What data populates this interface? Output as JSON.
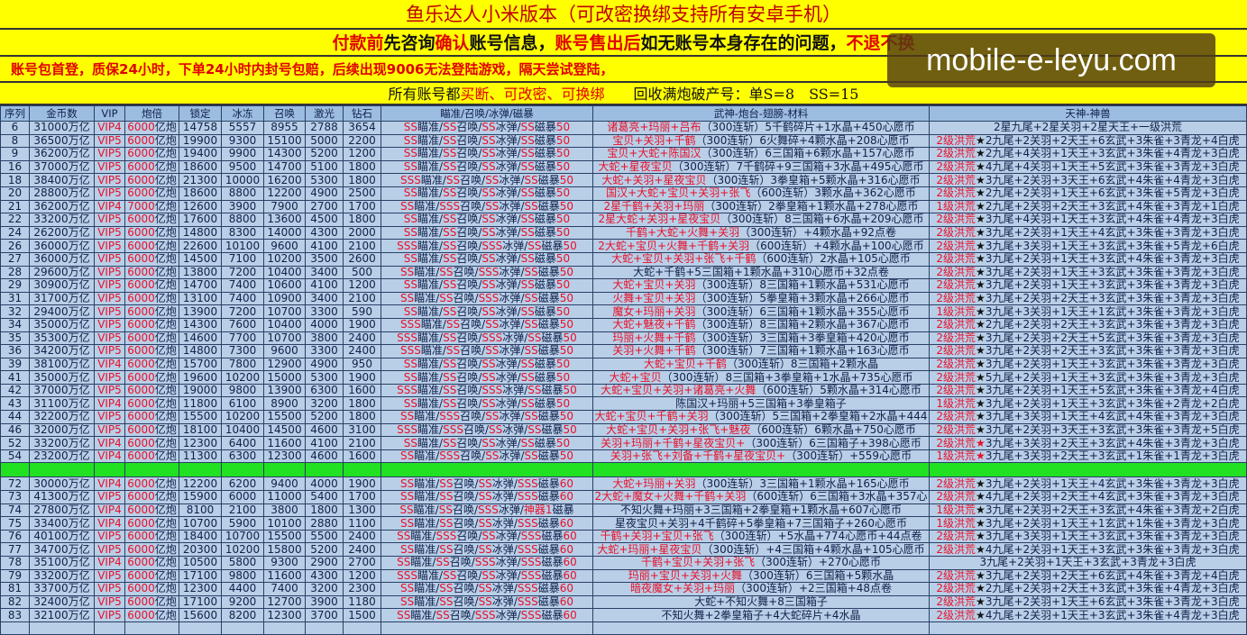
{
  "header": {
    "title": "鱼乐达人小米版本（可改密换绑支持所有安卓手机）",
    "line2": [
      {
        "t": "付款前",
        "c": "red"
      },
      {
        "t": "先咨询",
        "c": "blk"
      },
      {
        "t": "确认",
        "c": "red"
      },
      {
        "t": "账号信息，",
        "c": "blk"
      },
      {
        "t": "账号售出后",
        "c": "red"
      },
      {
        "t": "如无账号本身存在的问题，",
        "c": "blk"
      },
      {
        "t": "不退不换",
        "c": "red"
      }
    ],
    "line3": "账号包首登，质保24小时，下单24小时内封号包赔，后续出现9006无法登陆游戏，隔天尝试登陆，",
    "line4": [
      {
        "t": "所有账号都",
        "c": "blk"
      },
      {
        "t": "买断、可改密、可换绑",
        "c": "red"
      },
      {
        "t": "　　回收满炮破产号：单S=8　SS=15",
        "c": "blk"
      }
    ]
  },
  "watermark": "mobile-e-leyu.com",
  "columns": [
    "序列",
    "金币数",
    "VIP",
    "炮倍",
    "锁定",
    "冰冻",
    "召唤",
    "激光",
    "钻石",
    "瞄准/召唤/冰弹/磁暴",
    "武神-炮台-翅膀-材料",
    "天神-神兽"
  ],
  "skill_names": [
    "瞄准",
    "召唤",
    "冰弹",
    "磁暴"
  ],
  "rows_a": [
    [
      "6",
      "31000万亿",
      "VIP4",
      "6000亿炮",
      "14758",
      "5557",
      "8955",
      "2788",
      "3654",
      [
        "SS",
        "SS",
        "SS",
        "SS"
      ],
      "50",
      "诸葛亮+玛丽+吕布（300连斩）5千鹤碎片+1水晶+450心愿币",
      "2星九尾+2星关羽+2星天王+一级洪荒"
    ],
    [
      "8",
      "36500万亿",
      "VIP5",
      "6000亿炮",
      "19900",
      "9300",
      "15100",
      "5000",
      "2200",
      [
        "SS",
        "SS",
        "SS",
        "SS"
      ],
      "50",
      "宝贝+关羽+千鹤（300连斩）6火舞碎+4颗水晶+208心愿币",
      "2级洪荒★2九尾+2关羽+2天王+6玄武+3朱雀+3青龙+4白虎"
    ],
    [
      "9",
      "36200万亿",
      "VIP5",
      "6000亿炮",
      "19400",
      "9900",
      "14300",
      "5200",
      "1200",
      [
        "SS",
        "SS",
        "SS",
        "SS"
      ],
      "50",
      "宝贝+大蛇+陈国汉（300连斩）6三国箱+6颗水晶+157心愿币",
      "2级洪荒★2九尾+4关羽+1天王+3玄武+3朱雀+4青龙+3白虎"
    ],
    [
      "16",
      "37000万亿",
      "VIP5",
      "6000亿炮",
      "18600",
      "9500",
      "14700",
      "5100",
      "1800",
      [
        "SS",
        "SS",
        "SS",
        "SS"
      ],
      "50",
      "大蛇+星夜宝贝（300连斩）7千鹤碎+9三国箱+3水晶+495心愿币",
      "2级洪荒★4九尾+4关羽+1天王+5玄武+3朱雀+3青龙+3白虎"
    ],
    [
      "18",
      "38400万亿",
      "VIP5",
      "6000亿炮",
      "21300",
      "10000",
      "16200",
      "5300",
      "1800",
      [
        "SSS",
        "SS",
        "SS",
        "SS"
      ],
      "50",
      "大蛇+关羽+星夜宝贝（300连斩）3拳皇箱+5颗水晶+316心愿币",
      "2级洪荒★3九尾+2关羽+3天王+6玄武+4朱雀+4青龙+3白虎"
    ],
    [
      "20",
      "28800万亿",
      "VIP5",
      "6000亿炮",
      "18600",
      "8800",
      "12200",
      "4900",
      "2500",
      [
        "SS",
        "SS",
        "SS",
        "SS"
      ],
      "50",
      "国汉+大蛇+宝贝+关羽+张飞（600连斩）3颗水晶+362心愿币",
      "2级洪荒★2九尾+2关羽+1天王+6玄武+3朱雀+5青龙+3白虎"
    ],
    [
      "21",
      "36200万亿",
      "VIP4",
      "7000亿炮",
      "12600",
      "3900",
      "7900",
      "2700",
      "1700",
      [
        "SS",
        "SSS",
        "SS",
        "SS"
      ],
      "50",
      "2星千鹤+关羽+玛丽（300连斩）2拳皇箱+1颗水晶+278心愿币",
      "1级洪荒★2九尾+2关羽+2天王+3玄武+4朱雀+3青龙+1白虎"
    ],
    [
      "22",
      "33200万亿",
      "VIP5",
      "6000亿炮",
      "17600",
      "8800",
      "13600",
      "4500",
      "1800",
      [
        "SS",
        "SS",
        "SS",
        "SS"
      ],
      "50",
      "2星大蛇+关羽+星夜宝贝（300连斩）8三国箱+6水晶+209心愿币",
      "2级洪荒★3九尾+4关羽+1天王+3玄武+4朱雀+4青龙+3白虎"
    ],
    [
      "24",
      "26200万亿",
      "VIP5",
      "6000亿炮",
      "14800",
      "8300",
      "14000",
      "4300",
      "2000",
      [
        "SS",
        "SS",
        "SS",
        "SS"
      ],
      "50",
      "千鹤+大蛇+火舞+关羽（300连斩）+4颗水晶+92点卷",
      "2级洪荒★3九尾+2关羽+1天王+4玄武+3朱雀+3青龙+3白虎"
    ],
    [
      "26",
      "36000万亿",
      "VIP5",
      "6000亿炮",
      "22600",
      "10100",
      "9600",
      "4100",
      "2100",
      [
        "SSS",
        "SS",
        "SSS",
        "SS"
      ],
      "50",
      "2大蛇+宝贝+火舞+千鹤+关羽（600连斩）+4颗水晶+100心愿币",
      "2级洪荒★3九尾+3关羽+1天王+3玄武+3朱雀+5青龙+6白虎"
    ],
    [
      "27",
      "36000万亿",
      "VIP5",
      "6000亿炮",
      "14500",
      "7100",
      "10200",
      "3500",
      "2600",
      [
        "SS",
        "SS",
        "SS",
        "SS"
      ],
      "50",
      "大蛇+宝贝+关羽+张飞+千鹤（600连斩）2水晶+105心愿币",
      "2级洪荒★3九尾+2关羽+1天王+3玄武+4朱雀+3青龙+3白虎"
    ],
    [
      "28",
      "29600万亿",
      "VIP5",
      "6000亿炮",
      "13800",
      "7200",
      "10400",
      "3400",
      "500",
      [
        "SS",
        "SS",
        "SSS",
        "SS"
      ],
      "50",
      "大蛇+千鹤+5三国箱+1颗水晶+310心愿币+32点卷",
      "2级洪荒★3九尾+2关羽+1天王+3玄武+3朱雀+3青龙+3白虎"
    ],
    [
      "29",
      "30900万亿",
      "VIP5",
      "6000亿炮",
      "14700",
      "7400",
      "10600",
      "4100",
      "1200",
      [
        "SS",
        "SS",
        "SS",
        "SS"
      ],
      "50",
      "大蛇+宝贝+关羽（300连斩）8三国箱+1颗水晶+531心愿币",
      "2级洪荒★3九尾+2关羽+1天王+3玄武+3朱雀+3青龙+3白虎"
    ],
    [
      "31",
      "31700万亿",
      "VIP5",
      "6000亿炮",
      "13100",
      "7400",
      "10900",
      "3400",
      "2100",
      [
        "SS",
        "SS",
        "SSS",
        "SS"
      ],
      "50",
      "火舞+宝贝+关羽（300连斩）5拳皇箱+3颗水晶+266心愿币",
      "2级洪荒★3九尾+2关羽+2天王+3玄武+3朱雀+3青龙+3白虎"
    ],
    [
      "32",
      "29400万亿",
      "VIP5",
      "6000亿炮",
      "13900",
      "7200",
      "10700",
      "3300",
      "590",
      [
        "SS",
        "SS",
        "SS",
        "SS"
      ],
      "50",
      "魔女+玛丽+关羽（300连斩）6三国箱+1颗水晶+355心愿币",
      "1级洪荒★3九尾+3关羽+1天王+1玄武+3朱雀+3青龙+3白虎"
    ],
    [
      "34",
      "35000万亿",
      "VIP5",
      "6000亿炮",
      "14300",
      "7600",
      "10400",
      "4000",
      "1900",
      [
        "SSS",
        "SS",
        "SS",
        "SS"
      ],
      "50",
      "大蛇+魅夜+千鹤（300连斩）8三国箱+2颗水晶+367心愿币",
      "2级洪荒★2九尾+2关羽+2天王+3玄武+3朱雀+3青龙+3白虎"
    ],
    [
      "35",
      "35300万亿",
      "VIP5",
      "6000亿炮",
      "14600",
      "7700",
      "10700",
      "3800",
      "2400",
      [
        "SSS",
        "SS",
        "SSS",
        "SS"
      ],
      "50",
      "玛丽+火舞+千鹤（300连斩）3三国箱+3拳皇箱+420心愿币",
      "2级洪荒★3九尾+2关羽+2天王+5玄武+3朱雀+3青龙+3白虎"
    ],
    [
      "36",
      "34200万亿",
      "VIP5",
      "6000亿炮",
      "14800",
      "7300",
      "9600",
      "3300",
      "2400",
      [
        "SSS",
        "SS",
        "SS",
        "SS"
      ],
      "50",
      "关羽+火舞+千鹤（300连斩）7三国箱+1颗水晶+163心愿币",
      "2级洪荒★3九尾+2关羽+2天王+3玄武+3朱雀+3青龙+3白虎"
    ],
    [
      "39",
      "38100万亿",
      "VIP4",
      "6000亿炮",
      "15700",
      "7800",
      "12900",
      "4900",
      "950",
      [
        "SS",
        "SS",
        "SS",
        "SS"
      ],
      "50",
      "大蛇+宝贝+千鹤（300连斩）8三国箱+2颗水晶",
      "2级洪荒★3九尾+2关羽+1天王+3玄武+3朱雀+3青龙+3白虎"
    ],
    [
      "41",
      "35000万亿",
      "VIP5",
      "6000亿炮",
      "19600",
      "10200",
      "15000",
      "5300",
      "1900",
      [
        "SS",
        "SS",
        "SS",
        "SS"
      ],
      "50",
      "大蛇+宝贝（300连斩）8三国箱+3拳皇箱+1水晶+735心愿币",
      "2级洪荒★5九尾+2关羽+1天王+3玄武+3朱雀+3青龙+3白虎"
    ],
    [
      "42",
      "37000万亿",
      "VIP5",
      "6000亿炮",
      "19000",
      "9800",
      "13900",
      "6300",
      "1600",
      [
        "SSS",
        "SS",
        "SSS",
        "SS"
      ],
      "50",
      "大蛇+宝贝+关羽+诸葛亮+火舞（600连斩）5颗水晶+314心愿币",
      "2级洪荒★3九尾+2关羽+1天王+5玄武+3朱雀+3青龙+4白虎"
    ],
    [
      "43",
      "31100万亿",
      "VIP4",
      "6000亿炮",
      "11800",
      "6100",
      "8900",
      "3200",
      "1800",
      [
        "SS",
        "SS",
        "SS",
        "SS"
      ],
      "50",
      "陈国汉+玛丽+5三国箱+3拳皇箱子",
      "1级洪荒★3九尾+2关羽+1天王+3玄武+3朱雀+2青龙+2白虎"
    ],
    [
      "44",
      "32200万亿",
      "VIP5",
      "6000亿炮",
      "15500",
      "10200",
      "15500",
      "5200",
      "1800",
      [
        "SS",
        "SSS",
        "SS",
        "SS"
      ],
      "50",
      "大蛇+宝贝+千鹤+关羽（300连斩）5三国箱+2拳皇箱+2水晶+444",
      "2级洪荒★3九尾+3关羽+1天王+4玄武+4朱雀+3青龙+3白虎"
    ],
    [
      "46",
      "32000万亿",
      "VIP5",
      "6000亿炮",
      "18100",
      "10400",
      "14500",
      "4600",
      "3100",
      [
        "SSS",
        "SSS",
        "SS",
        "SS"
      ],
      "50",
      "大蛇+宝贝+关羽+张飞+魅夜（600连斩）6颗水晶+750心愿币",
      "2级洪荒★3九尾+2关羽+3天王+3玄武+3朱雀+3青龙+5白虎"
    ],
    [
      "52",
      "33200万亿",
      "VIP4",
      "6000亿炮",
      "12300",
      "6400",
      "11600",
      "4100",
      "2100",
      [
        "SS",
        "SS",
        "SS",
        "SS"
      ],
      "50",
      "关羽+玛丽+千鹤+星夜宝贝+（300连斩）6三国箱子+398心愿币",
      "2级洪荒★3九尾+3关羽+2天王+3玄武+4朱雀+3青龙+3白虎"
    ],
    [
      "54",
      "23200万亿",
      "VIP4",
      "6000亿炮",
      "11300",
      "6300",
      "12300",
      "4600",
      "1600",
      [
        "SS",
        "SSS",
        "SS",
        "SS"
      ],
      "50",
      "关羽+张飞+刘备+千鹤+星夜宝贝+（300连斩）+559心愿币",
      "1级洪荒★3九尾+3关羽+2天王+3玄武+1朱雀+1青龙+3白虎"
    ]
  ],
  "rows_b": [
    [
      "72",
      "30000万亿",
      "VIP4",
      "6000亿炮",
      "12200",
      "6200",
      "9400",
      "4000",
      "1900",
      [
        "SS",
        "SS",
        "SS",
        "SSS"
      ],
      "60",
      "大蛇+玛丽+关羽（300连斩）3三国箱+1颗水晶+165心愿币",
      "2级洪荒★3九尾+2关羽+1天王+4玄武+3朱雀+3青龙+3白虎"
    ],
    [
      "73",
      "41300万亿",
      "VIP5",
      "6000亿炮",
      "15900",
      "6000",
      "11000",
      "5400",
      "1700",
      [
        "SS",
        "SS",
        "SS",
        "SSS"
      ],
      "60",
      "2大蛇+魔女+火舞+千鹤+关羽（600连斩）6三国箱+3水晶+357心",
      "2级洪荒★4九尾+2关羽+2天王+4玄武+3朱雀+3青龙+3白虎"
    ],
    [
      "74",
      "27800万亿",
      "VIP4",
      "6000亿炮",
      "8100",
      "2100",
      "3800",
      "1800",
      "1300",
      [
        "SS",
        "SS",
        "SSS",
        "神器1"
      ],
      "",
      "不知火舞+玛丽+3三国箱+2拳皇箱+1颗水晶+607心愿币",
      "1级洪荒★3九尾+2关羽+2天王+3玄武+4朱雀+3青龙+2白虎"
    ],
    [
      "75",
      "33400万亿",
      "VIP4",
      "6000亿炮",
      "10700",
      "5900",
      "10100",
      "2880",
      "1100",
      [
        "SS",
        "SS",
        "SS",
        "SSS"
      ],
      "60",
      "星夜宝贝+关羽+4千鹤碎+5拳皇箱+7三国箱子+260心愿币",
      "1级洪荒★3九尾+2关羽+1天王+1玄武+1朱雀+3青龙+3白虎"
    ],
    [
      "76",
      "40100万亿",
      "VIP5",
      "6000亿炮",
      "18400",
      "10700",
      "15500",
      "5500",
      "2400",
      [
        "SS",
        "SSS",
        "SS",
        "SSS"
      ],
      "60",
      "千鹤+关羽+宝贝+张飞（300连斩）+5水晶+774心愿币+44点卷",
      "2级洪荒★3九尾+3关羽+1天王+3玄武+3朱雀+3青龙+3白虎"
    ],
    [
      "77",
      "34700万亿",
      "VIP5",
      "6000亿炮",
      "20300",
      "10200",
      "15800",
      "5200",
      "2400",
      [
        "SS",
        "SS",
        "SS",
        "SSS"
      ],
      "60",
      "大蛇+玛丽+星夜宝贝（300连斩）+4三国箱+4颗水晶+105心愿币",
      "2级洪荒★4九尾+2关羽+1天王+3玄武+3朱雀+3青龙+3白虎"
    ],
    [
      "78",
      "35100万亿",
      "VIP4",
      "6000亿炮",
      "10500",
      "5800",
      "9300",
      "2900",
      "2700",
      [
        "SS",
        "SS",
        "SSS",
        "SSS"
      ],
      "60",
      "千鹤+宝贝+关羽+张飞（300连斩）+270心愿币",
      "3九尾+2关羽+1天王+3玄武+3青龙+3白虎"
    ],
    [
      "79",
      "33200万亿",
      "VIP5",
      "6000亿炮",
      "17100",
      "9800",
      "11600",
      "4300",
      "1200",
      [
        "SSS",
        "SS",
        "SS",
        "SSS"
      ],
      "60",
      "玛丽+宝贝+关羽+火舞（300连斩）6三国箱+5颗水晶",
      "2级洪荒★3九尾+2关羽+2天王+6玄武+4朱雀+3青龙+4白虎"
    ],
    [
      "81",
      "33700万亿",
      "VIP5",
      "6000亿炮",
      "12300",
      "4400",
      "7400",
      "3200",
      "2300",
      [
        "SS",
        "SS",
        "SS",
        "SSS"
      ],
      "60",
      "暗夜魔女+关羽+玛丽（300连斩）+2三国箱+48点卷",
      "2级洪荒★2九尾+2关羽+2天王+3玄武+3朱雀+4青龙+3白虎"
    ],
    [
      "82",
      "32400万亿",
      "VIP5",
      "6000亿炮",
      "17100",
      "9200",
      "12700",
      "3900",
      "1180",
      [
        "SS",
        "SS",
        "SS",
        "SSS"
      ],
      "60",
      "大蛇+不知火舞+8三国箱子",
      "2级洪荒★3九尾+2关羽+1天王+6玄武+3朱雀+3青龙+3白虎"
    ],
    [
      "83",
      "32100万亿",
      "VIP5",
      "6000亿炮",
      "15600",
      "8200",
      "12300",
      "3700",
      "1500",
      [
        "SS",
        "SS",
        "SSS",
        "SSS"
      ],
      "60",
      "不知火舞+2拳皇箱子+4大蛇碎片+4水晶",
      "2级洪荒★4九尾+2关羽+1天王+3玄武+3朱雀+4青龙+3白虎"
    ]
  ],
  "colors": {
    "banner": "#ffff00",
    "accent_red": "#e8102a",
    "table_bg": "#b9cfe7",
    "separator": "#22e022"
  }
}
